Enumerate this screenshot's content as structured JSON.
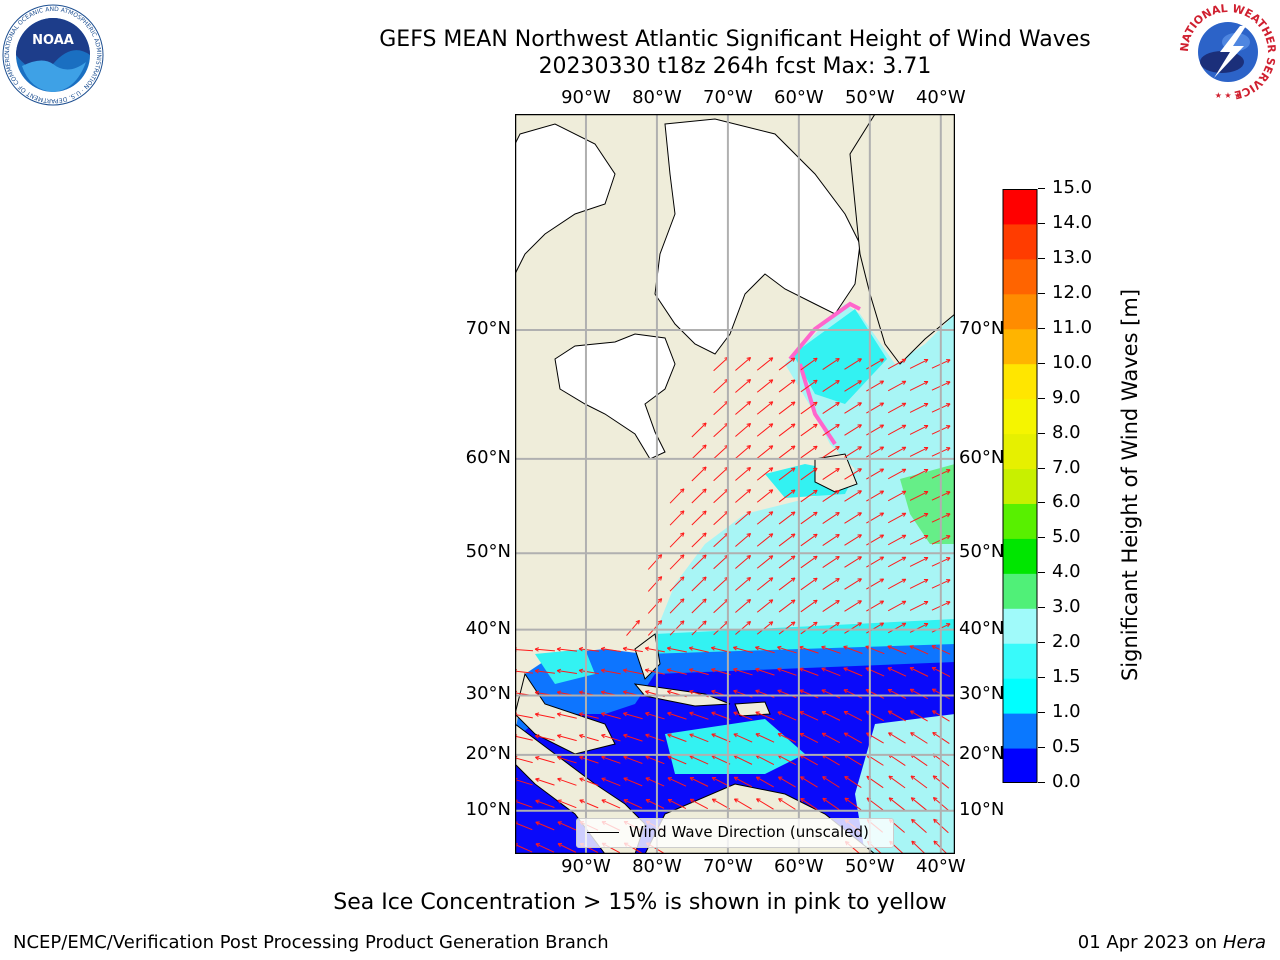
{
  "title_line1": "GEFS MEAN Northwest Atlantic Significant Height of Wind Waves",
  "title_line2": "20230330 t18z 264h fcst   Max: 3.71",
  "map": {
    "lon_labels": [
      "90°W",
      "80°W",
      "70°W",
      "60°W",
      "50°W",
      "40°W"
    ],
    "lon_values": [
      -90,
      -80,
      -70,
      -60,
      -50,
      -40
    ],
    "lat_labels": [
      "70°N",
      "60°N",
      "50°N",
      "40°N",
      "30°N",
      "20°N",
      "10°N"
    ],
    "lat_values": [
      70,
      60,
      50,
      40,
      30,
      20,
      10
    ],
    "lon_range": [
      -100,
      -38
    ],
    "lat_range": [
      2,
      80
    ],
    "colors": {
      "land": "#efedda",
      "ice_free_north": "#ffffff",
      "ocean_light": "#a8f5f5",
      "ocean_cyan": "#33f2f2",
      "ocean_blue_mid": "#0d75ff",
      "ocean_blue": "#0a0afa",
      "arrow": "#ff1a1a",
      "ice": "#ff66cc"
    },
    "legend_label": "Wind Wave Direction (unscaled)"
  },
  "colorbar": {
    "label": "Significant Height of Wind Waves [m]",
    "ticks": [
      "0.0",
      "0.5",
      "1.0",
      "1.5",
      "2.0",
      "3.0",
      "4.0",
      "5.0",
      "6.0",
      "7.0",
      "8.0",
      "9.0",
      "10.0",
      "11.0",
      "12.0",
      "13.0",
      "14.0",
      "15.0"
    ],
    "colors": [
      "#0000ff",
      "#0a78ff",
      "#00ffff",
      "#38fafa",
      "#a0fafa",
      "#50f078",
      "#00e600",
      "#58f000",
      "#c8f000",
      "#e6f000",
      "#f5f500",
      "#ffe600",
      "#ffb400",
      "#ff8c00",
      "#ff6400",
      "#ff3c00",
      "#ff0000"
    ]
  },
  "ice_note": "Sea Ice Concentration > 15% is shown in pink to yellow",
  "footer_left": "NCEP/EMC/Verification Post Processing Product Generation Branch",
  "footer_right_prefix": "01 Apr 2023 on ",
  "footer_right_host": "Hera",
  "logos": {
    "noaa_text": "NOAA",
    "noaa_ring": "NATIONAL OCEANIC AND ATMOSPHERIC ADMINISTRATION · U.S. DEPARTMENT OF COMMERCE",
    "nws_ring": "NATIONAL WEATHER SERVICE"
  }
}
